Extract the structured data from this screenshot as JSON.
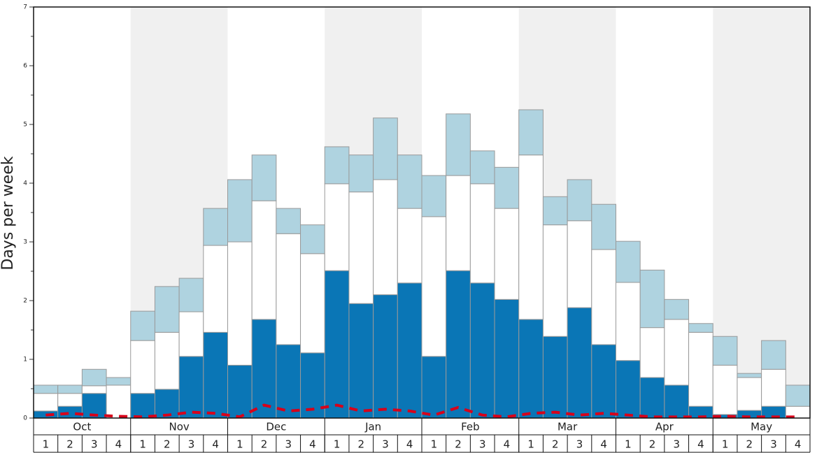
{
  "chart_data": {
    "type": "stacked_bar",
    "y_label": "Days per week",
    "months": [
      "Oct",
      "Nov",
      "Dec",
      "Jan",
      "Feb",
      "Mar",
      "Apr",
      "May"
    ],
    "categories": [
      "1",
      "2",
      "3",
      "4",
      "1",
      "2",
      "3",
      "4",
      "1",
      "2",
      "3",
      "4",
      "1",
      "2",
      "3",
      "4",
      "1",
      "2",
      "3",
      "4",
      "1",
      "2",
      "3",
      "4",
      "1",
      "2",
      "3",
      "4",
      "1",
      "2",
      "3",
      "4"
    ],
    "series": [
      {
        "color": "#0a76b6",
        "values": [
          0.12,
          0.2,
          0.42,
          0,
          0.42,
          0.49,
          1.05,
          1.46,
          0.9,
          1.68,
          1.25,
          1.11,
          2.51,
          1.95,
          2.1,
          2.3,
          1.05,
          2.51,
          2.3,
          2.02,
          1.68,
          1.39,
          1.88,
          1.25,
          0.98,
          0.69,
          0.56,
          0.2,
          0.06,
          0.13,
          0.2,
          0
        ]
      },
      {
        "color": "#ffffff",
        "values": [
          0.3,
          0.22,
          0.13,
          0.56,
          0.9,
          0.97,
          0.76,
          1.48,
          2.1,
          2.02,
          1.89,
          1.69,
          1.48,
          1.9,
          1.96,
          1.27,
          2.38,
          1.62,
          1.69,
          1.55,
          2.8,
          1.9,
          1.48,
          1.62,
          1.33,
          0.85,
          1.12,
          1.26,
          0.84,
          0.56,
          0.63,
          0.2
        ]
      },
      {
        "color": "#afd3e0",
        "values": [
          0.14,
          0.14,
          0.28,
          0.13,
          0.5,
          0.78,
          0.57,
          0.63,
          1.06,
          0.78,
          0.43,
          0.49,
          0.63,
          0.63,
          1.05,
          0.91,
          0.7,
          1.05,
          0.56,
          0.7,
          0.77,
          0.48,
          0.7,
          0.77,
          0.7,
          0.98,
          0.34,
          0.15,
          0.49,
          0.07,
          0.49,
          0.36
        ]
      }
    ],
    "line": {
      "color": "#d7001a",
      "values": [
        0.05,
        0.08,
        0.05,
        0.03,
        0.02,
        0.05,
        0.1,
        0.08,
        0.02,
        0.22,
        0.12,
        0.15,
        0.22,
        0.12,
        0.15,
        0.12,
        0.05,
        0.18,
        0.05,
        0.02,
        0.08,
        0.1,
        0.05,
        0.08,
        0.05,
        0.02,
        0.02,
        0.02,
        0.03,
        0.02,
        0.02,
        0.02
      ]
    },
    "ylim": [
      0,
      7
    ],
    "yticks": [
      0,
      1,
      2,
      3,
      4,
      5,
      6,
      7
    ],
    "yminorticks": [
      0.5,
      1.5,
      2.5,
      3.5,
      4.5,
      5.5,
      6.5
    ]
  }
}
